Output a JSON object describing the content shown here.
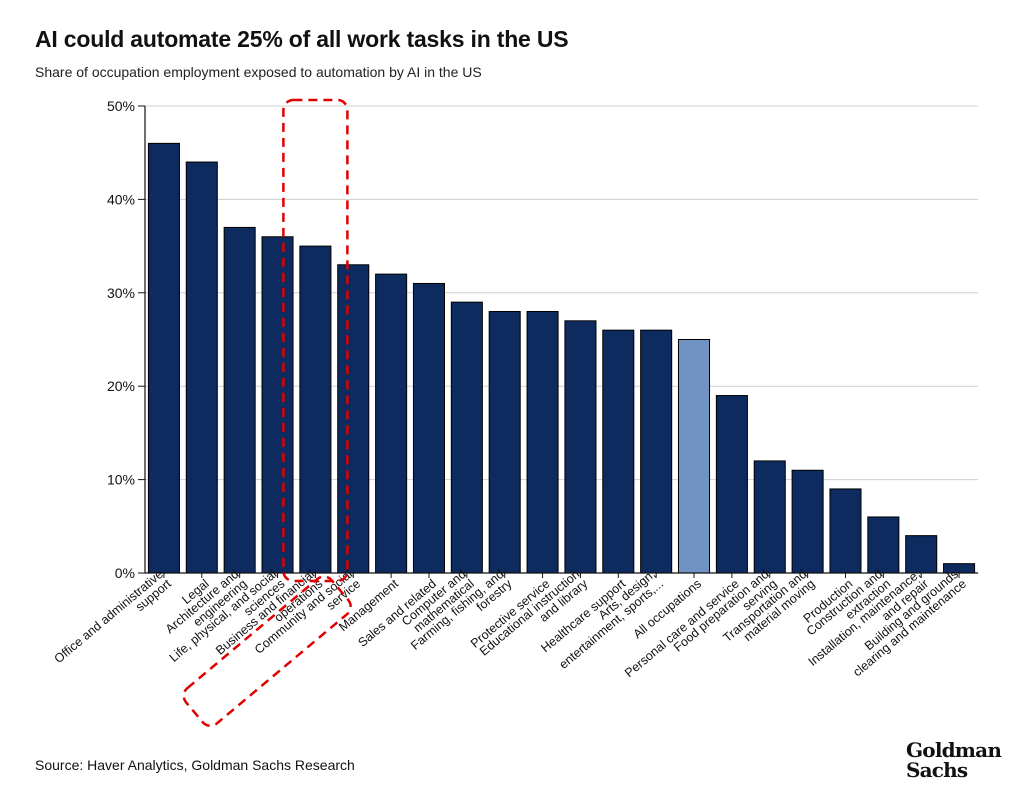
{
  "title": "AI could automate 25% of all work tasks in the US",
  "subtitle": "Share of occupation employment exposed to automation by AI in the US",
  "source": "Source: Haver Analytics, Goldman Sachs Research",
  "logo": {
    "line1": "Goldman",
    "line2": "Sachs"
  },
  "colors": {
    "bar": "#0d2b5e",
    "highlight": "#7093c4",
    "grid": "#d0d0d0",
    "annotation": "#e00000"
  },
  "chart_data": {
    "type": "bar",
    "categories": [
      "Office and administrative support",
      "Legal",
      "Architecture and engineering",
      "Life, physical, and social sciences",
      "Business and financial operations",
      "Community and social service",
      "Management",
      "Sales and related",
      "Computer and mathematical",
      "Farming, fishing, and forestry",
      "Protective service",
      "Educational instruction and library",
      "Healthcare support",
      "Arts, design, entertainment, sports,...",
      "All occupations",
      "Personal care and service",
      "Food preparation and serving",
      "Transportation and material moving",
      "Production",
      "Construction and extraction",
      "Installation, maintenance, and repair",
      "Building and grounds clearing and maintenance"
    ],
    "label_lines": [
      [
        "Office and administrative",
        "support"
      ],
      [
        "Legal"
      ],
      [
        "Architecture and",
        "engineering"
      ],
      [
        "Life, physical, and social",
        "sciences"
      ],
      [
        "Business and financial",
        "operations"
      ],
      [
        "Community and social",
        "service"
      ],
      [
        "Management"
      ],
      [
        "Sales and related"
      ],
      [
        "Computer and",
        "mathematical"
      ],
      [
        "Farming, fishing, and",
        "forestry"
      ],
      [
        "Protective service"
      ],
      [
        "Educational instruction",
        "and library"
      ],
      [
        "Healthcare support"
      ],
      [
        "Arts, design,",
        "entertainment, sports,..."
      ],
      [
        "All occupations"
      ],
      [
        "Personal care and service"
      ],
      [
        "Food preparation and",
        "serving"
      ],
      [
        "Transportation and",
        "material moving"
      ],
      [
        "Production"
      ],
      [
        "Construction and",
        "extraction"
      ],
      [
        "Installation, maintenance,",
        "and repair"
      ],
      [
        "Building and grounds",
        "clearing and maintenance"
      ]
    ],
    "values": [
      46,
      44,
      37,
      36,
      35,
      33,
      32,
      31,
      29,
      28,
      28,
      27,
      26,
      26,
      25,
      19,
      12,
      11,
      9,
      6,
      4,
      1
    ],
    "highlighted_category": "All occupations",
    "annotated_category": "Business and financial operations",
    "ylim": [
      0,
      50
    ],
    "yticks": [
      0,
      10,
      20,
      30,
      40,
      50
    ],
    "ytick_labels": [
      "0%",
      "10%",
      "20%",
      "30%",
      "40%",
      "50%"
    ],
    "xlabel": "",
    "ylabel": "",
    "grid": true
  }
}
